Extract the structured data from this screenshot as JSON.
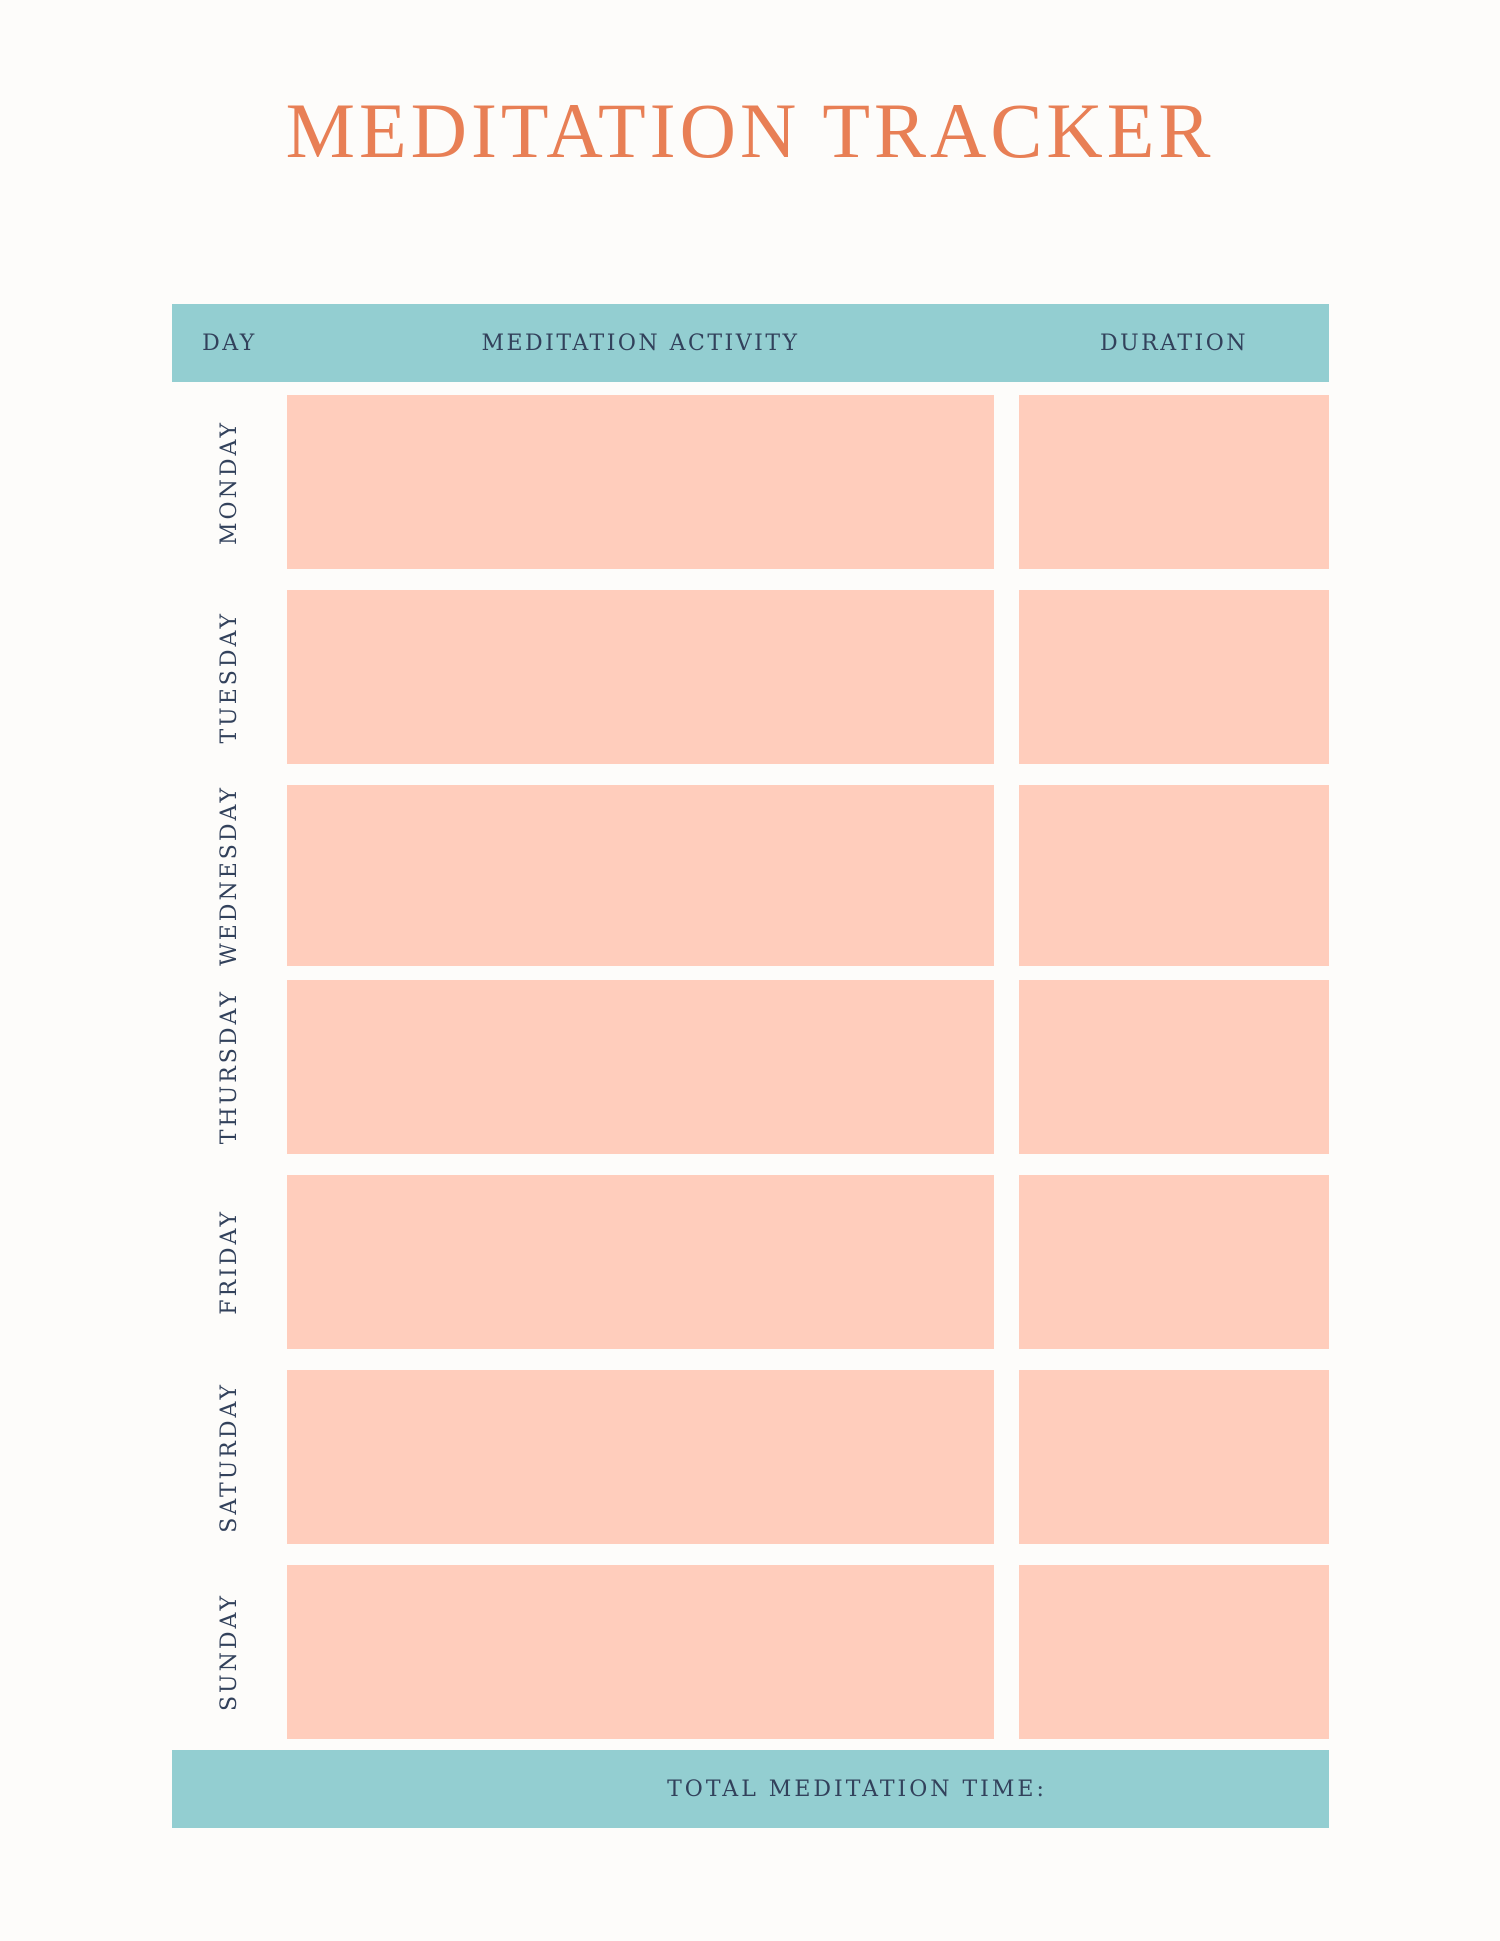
{
  "page": {
    "title": "MEDITATION TRACKER"
  },
  "colors": {
    "title_coral": "#e87f55",
    "band_teal": "#93ced1",
    "cell_peach": "#ffcdbc",
    "text_navy": "#32415b",
    "background": "#fdfcfa"
  },
  "table": {
    "columns": {
      "day": "DAY",
      "activity": "MEDITATION ACTIVITY",
      "duration": "DURATION"
    },
    "rows": [
      {
        "day": "MONDAY",
        "activity": "",
        "duration": ""
      },
      {
        "day": "TUESDAY",
        "activity": "",
        "duration": ""
      },
      {
        "day": "WEDNESDAY",
        "activity": "",
        "duration": ""
      },
      {
        "day": "THURSDAY",
        "activity": "",
        "duration": ""
      },
      {
        "day": "FRIDAY",
        "activity": "",
        "duration": ""
      },
      {
        "day": "SATURDAY",
        "activity": "",
        "duration": ""
      },
      {
        "day": "SUNDAY",
        "activity": "",
        "duration": ""
      }
    ]
  },
  "footer": {
    "label": "TOTAL MEDITATION TIME:",
    "value": ""
  }
}
